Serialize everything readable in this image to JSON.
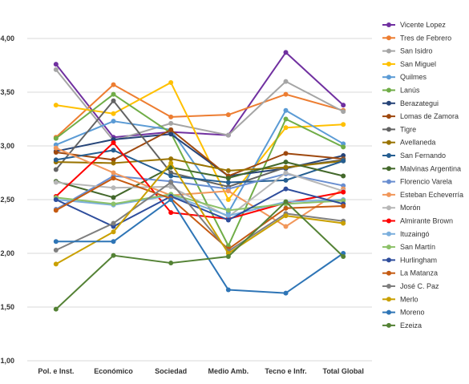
{
  "chart_data": {
    "type": "line",
    "title": "",
    "xlabel": "",
    "ylabel": "",
    "categories": [
      "Pol. e Inst.",
      "Económico",
      "Sociedad",
      "Medio Amb.",
      "Tecno e Infr.",
      "Total Global"
    ],
    "ylim": [
      1.0,
      4.0
    ],
    "yticks": [
      "1,00",
      "1,50",
      "2,00",
      "2,50",
      "3,00",
      "3,50",
      "4,00"
    ],
    "ytick_values": [
      1.0,
      1.5,
      2.0,
      2.5,
      3.0,
      3.5,
      4.0
    ],
    "grid": true,
    "legend_position": "right",
    "series": [
      {
        "name": "Vicente Lopez",
        "color": "#7030A0",
        "values": [
          3.76,
          3.08,
          3.13,
          3.1,
          3.87,
          3.38
        ]
      },
      {
        "name": "Tres de Febrero",
        "color": "#ED7D31",
        "values": [
          3.08,
          3.57,
          3.27,
          3.29,
          3.48,
          3.33
        ]
      },
      {
        "name": "San Isidro",
        "color": "#A5A5A5",
        "values": [
          3.71,
          3.05,
          3.21,
          3.1,
          3.6,
          3.32
        ]
      },
      {
        "name": "San Miguel",
        "color": "#FFC000",
        "values": [
          3.38,
          3.3,
          3.59,
          2.5,
          3.17,
          3.2
        ]
      },
      {
        "name": "Quilmes",
        "color": "#5B9BD5",
        "values": [
          3.01,
          3.23,
          3.15,
          2.38,
          3.33,
          3.02
        ]
      },
      {
        "name": "Lanús",
        "color": "#70AD47",
        "values": [
          3.07,
          3.48,
          3.12,
          2.07,
          3.25,
          2.99
        ]
      },
      {
        "name": "Berazategui",
        "color": "#264478",
        "values": [
          2.95,
          3.06,
          3.11,
          2.72,
          2.79,
          2.91
        ]
      },
      {
        "name": "Lomas de Zamora",
        "color": "#9E480E",
        "values": [
          2.94,
          2.87,
          3.15,
          2.72,
          2.93,
          2.88
        ]
      },
      {
        "name": "Tigre",
        "color": "#636363",
        "values": [
          2.78,
          3.42,
          2.75,
          2.62,
          2.8,
          2.87
        ]
      },
      {
        "name": "Avellaneda",
        "color": "#997300",
        "values": [
          2.85,
          2.84,
          2.88,
          2.77,
          2.8,
          2.86
        ]
      },
      {
        "name": "San Fernando",
        "color": "#255E91",
        "values": [
          2.87,
          2.96,
          2.72,
          2.66,
          2.68,
          2.86
        ]
      },
      {
        "name": "Malvinas Argentina",
        "color": "#43682B",
        "values": [
          2.67,
          2.52,
          2.8,
          2.7,
          2.85,
          2.72
        ]
      },
      {
        "name": "Florencio Varela",
        "color": "#698ED0",
        "values": [
          2.41,
          2.72,
          2.67,
          2.6,
          2.74,
          2.63
        ]
      },
      {
        "name": "Esteban Echeverría",
        "color": "#F1975A",
        "values": [
          2.98,
          2.75,
          2.54,
          2.58,
          2.25,
          2.6
        ]
      },
      {
        "name": "Morón",
        "color": "#B7B7B7",
        "values": [
          2.66,
          2.61,
          2.62,
          2.34,
          2.75,
          2.58
        ]
      },
      {
        "name": "Almirante Brown",
        "color": "#FF0000",
        "values": [
          2.53,
          3.03,
          2.38,
          2.32,
          2.47,
          2.57
        ]
      },
      {
        "name": "Ituzaingó",
        "color": "#7CAFDD",
        "values": [
          2.5,
          2.45,
          2.54,
          2.35,
          2.48,
          2.5
        ]
      },
      {
        "name": "San Martín",
        "color": "#8CC168",
        "values": [
          2.52,
          2.46,
          2.55,
          2.4,
          2.46,
          2.49
        ]
      },
      {
        "name": "Hurlingham",
        "color": "#2E4D9C",
        "values": [
          2.5,
          2.25,
          2.53,
          2.31,
          2.6,
          2.46
        ]
      },
      {
        "name": "La Matanza",
        "color": "#C55A11",
        "values": [
          2.4,
          2.7,
          2.51,
          2.04,
          2.42,
          2.44
        ]
      },
      {
        "name": "José C. Paz",
        "color": "#7F7F7F",
        "values": [
          2.03,
          2.28,
          2.66,
          2.02,
          2.37,
          2.3
        ]
      },
      {
        "name": "Merlo",
        "color": "#C9A000",
        "values": [
          1.9,
          2.2,
          2.84,
          2.0,
          2.35,
          2.28
        ]
      },
      {
        "name": "Moreno",
        "color": "#2E75B6",
        "values": [
          2.11,
          2.11,
          2.5,
          1.66,
          1.63,
          2.0
        ]
      },
      {
        "name": "Ezeiza",
        "color": "#548235",
        "values": [
          1.48,
          1.98,
          1.91,
          1.97,
          2.48,
          1.97
        ]
      }
    ]
  }
}
